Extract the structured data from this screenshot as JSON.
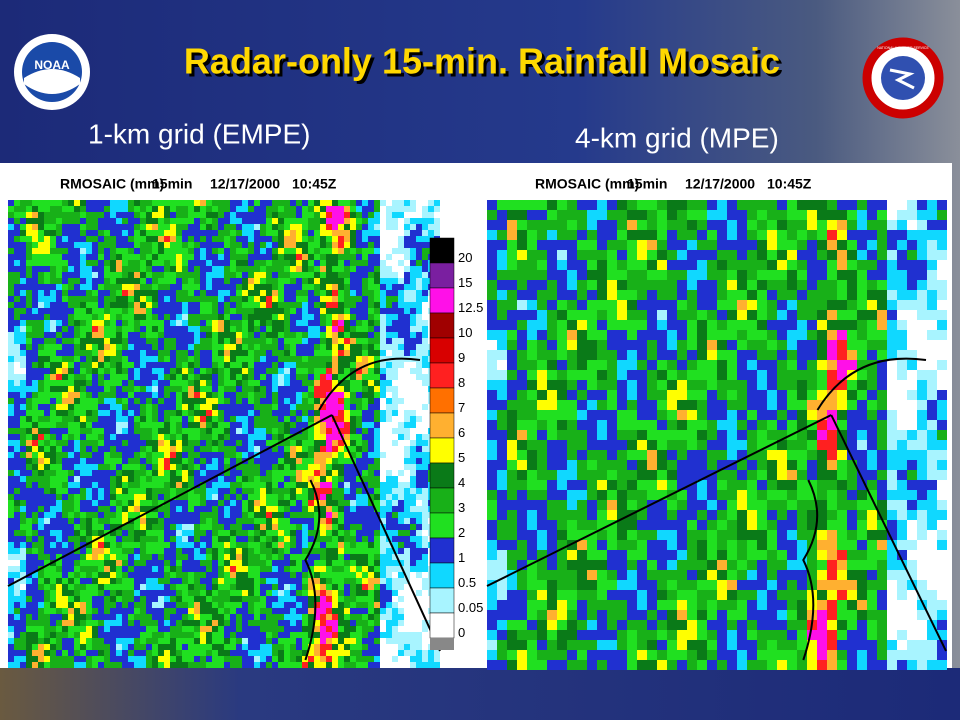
{
  "header": {
    "title": "Radar-only 15-min. Rainfall Mosaic",
    "left_logo": "NOAA",
    "right_logo": "NATIONAL WEATHER SERVICE"
  },
  "panels": [
    {
      "subtitle": "1-km grid (EMPE)",
      "product": "RMOSAIC (mm)",
      "interval": "15min",
      "date": "12/17/2000",
      "time": "10:45Z"
    },
    {
      "subtitle": "4-km grid (MPE)",
      "product": "RMOSAIC (mm)",
      "interval": "15min",
      "date": "12/17/2000",
      "time": "10:45Z"
    }
  ],
  "legend": [
    {
      "label": "20",
      "color": "#000000"
    },
    {
      "label": "15",
      "color": "#7a1fa0"
    },
    {
      "label": "12.5",
      "color": "#ff10e8"
    },
    {
      "label": "10",
      "color": "#a00000"
    },
    {
      "label": "9",
      "color": "#d80000"
    },
    {
      "label": "8",
      "color": "#ff2020"
    },
    {
      "label": "7",
      "color": "#ff7000"
    },
    {
      "label": "6",
      "color": "#ffb030"
    },
    {
      "label": "5",
      "color": "#ffff00"
    },
    {
      "label": "4",
      "color": "#0a7a18"
    },
    {
      "label": "3",
      "color": "#18b018"
    },
    {
      "label": "2",
      "color": "#20e020"
    },
    {
      "label": "1",
      "color": "#2030d0"
    },
    {
      "label": "0.5",
      "color": "#10d8ff"
    },
    {
      "label": "0.05",
      "color": "#a8f4ff"
    },
    {
      "label": "0",
      "color": "#ffffff"
    }
  ]
}
